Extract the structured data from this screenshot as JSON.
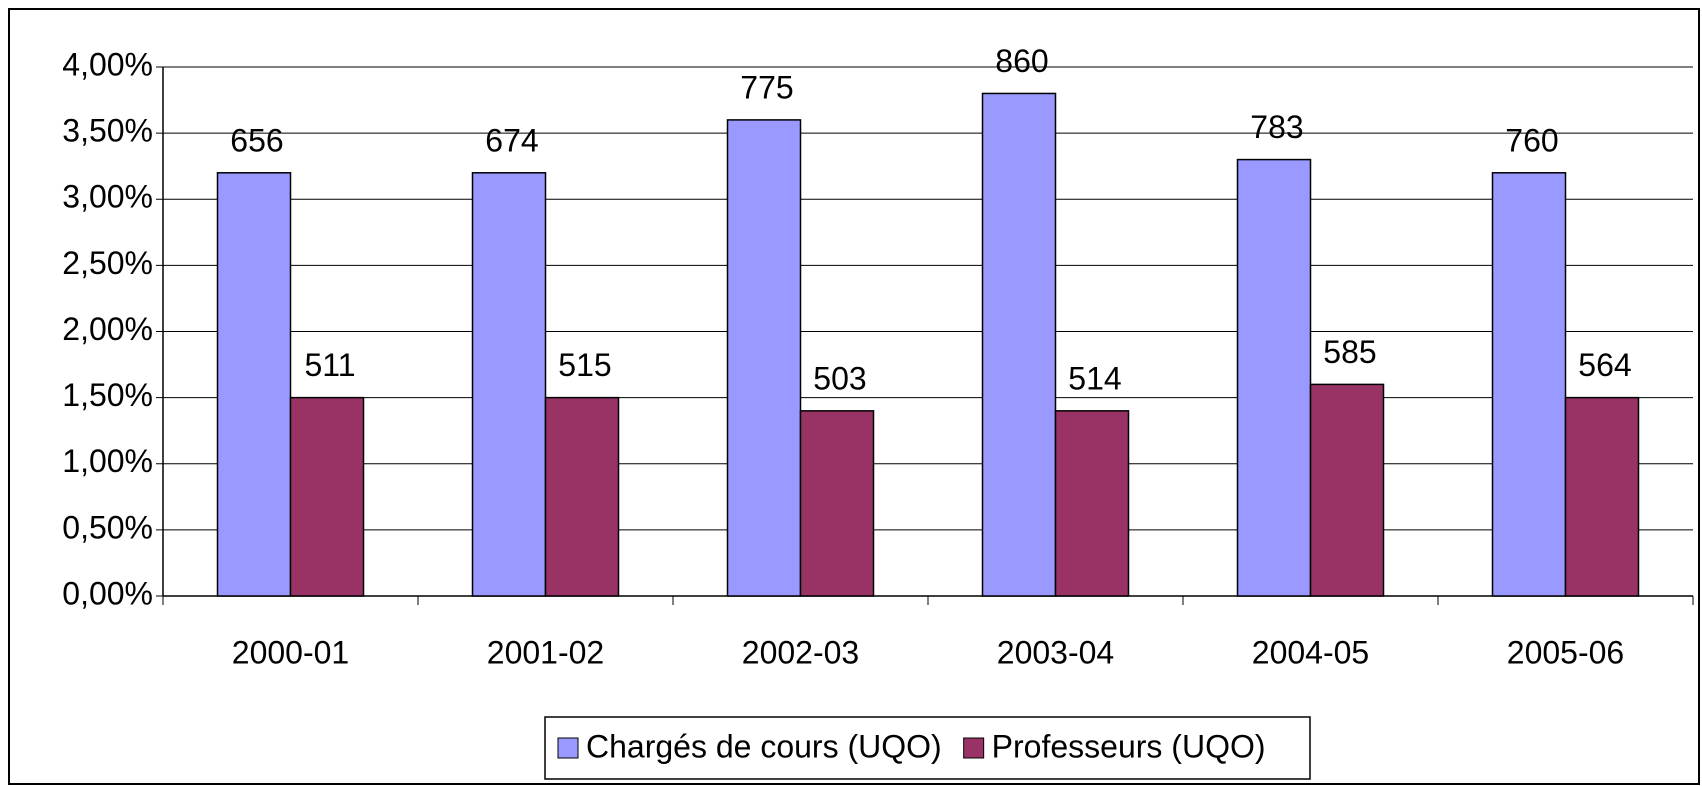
{
  "chart_data": {
    "type": "bar",
    "categories": [
      "2000-01",
      "2001-02",
      "2002-03",
      "2003-04",
      "2004-05",
      "2005-06"
    ],
    "series": [
      {
        "name": "Chargés de cours (UQO)",
        "color": "#9999ff",
        "values": [
          3.2,
          3.2,
          3.6,
          3.8,
          3.3,
          3.2
        ],
        "counts": [
          656,
          674,
          775,
          860,
          783,
          760
        ]
      },
      {
        "name": "Professeurs (UQO)",
        "color": "#993366",
        "values": [
          1.5,
          1.5,
          1.4,
          1.4,
          1.6,
          1.5
        ],
        "counts": [
          511,
          515,
          503,
          514,
          585,
          564
        ]
      }
    ],
    "ylim": [
      0,
      4
    ],
    "yticks": [
      {
        "value": 0,
        "label": "0,00%"
      },
      {
        "value": 0.5,
        "label": "0,50%"
      },
      {
        "value": 1,
        "label": "1,00%"
      },
      {
        "value": 1.5,
        "label": "1,50%"
      },
      {
        "value": 2,
        "label": "2,00%"
      },
      {
        "value": 2.5,
        "label": "2,50%"
      },
      {
        "value": 3,
        "label": "3,00%"
      },
      {
        "value": 3.5,
        "label": "3,50%"
      },
      {
        "value": 4,
        "label": "4,00%"
      }
    ],
    "grid": true,
    "legend": "bottom"
  }
}
